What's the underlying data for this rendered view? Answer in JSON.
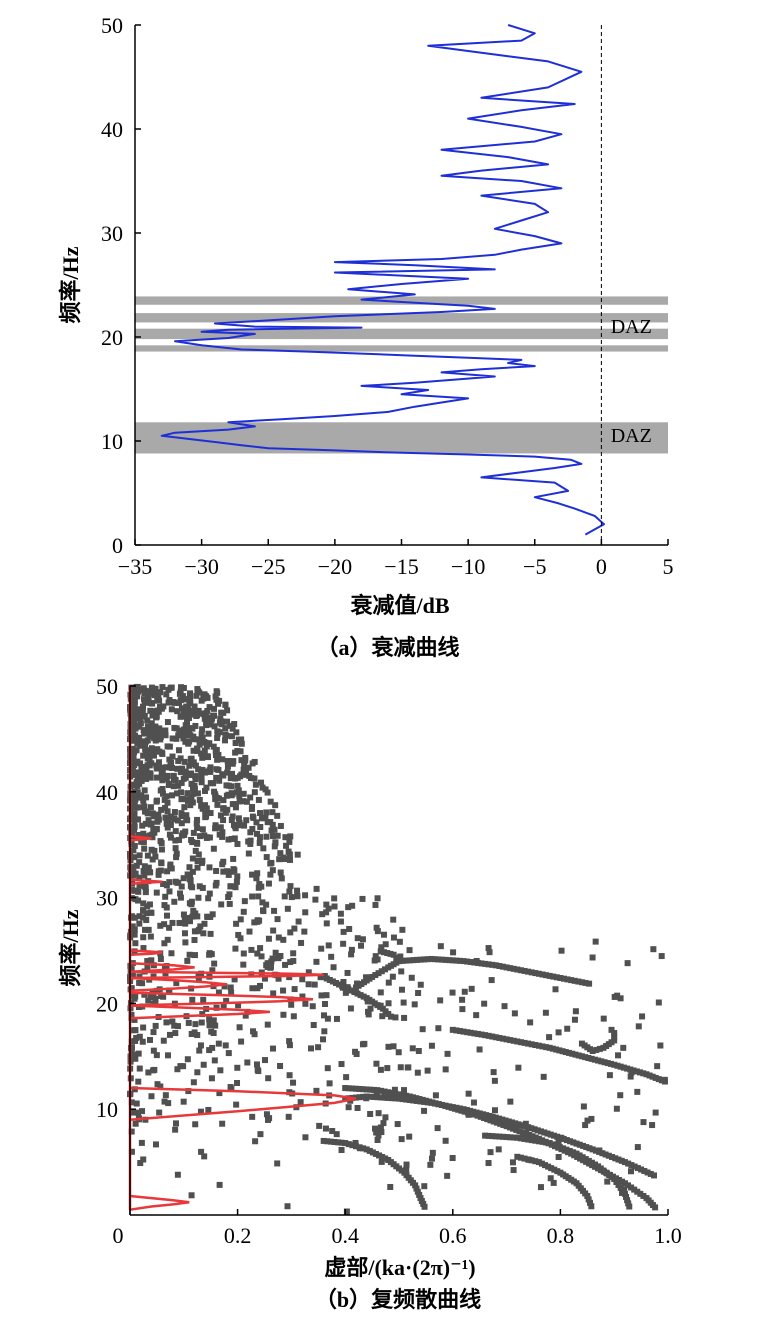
{
  "chart_data": [
    {
      "type": "line",
      "caption": "（a）衰减曲线",
      "xlabel": "衰减值/dB",
      "ylabel": "频率/Hz",
      "xlim": [
        -35,
        5
      ],
      "ylim": [
        0,
        50
      ],
      "xticks": [
        "−35",
        "−30",
        "−25",
        "−20",
        "−15",
        "−10",
        "−5",
        "0",
        "5"
      ],
      "yticks": [
        "0",
        "10",
        "20",
        "30",
        "40",
        "50"
      ],
      "line_color": "#1f2fd6",
      "band_color": "#a9a9a9",
      "reference_line_x": 0,
      "bands": [
        {
          "y0": 8.8,
          "y1": 11.8
        },
        {
          "y0": 18.6,
          "y1": 19.2
        },
        {
          "y0": 19.8,
          "y1": 20.8
        },
        {
          "y0": 21.4,
          "y1": 22.3
        },
        {
          "y0": 23.1,
          "y1": 23.9
        }
      ],
      "band_labels": [
        {
          "text": "DAZ",
          "x": 0.4,
          "y": 10.1
        },
        {
          "text": "DAZ",
          "x": 0.4,
          "y": 20.6
        }
      ],
      "series": [
        {
          "x": [
            -1.2,
            -0.5,
            0.2,
            -0.5,
            -2.0,
            -3.2,
            -5.0,
            -2.5,
            -3.5,
            -9.0,
            -6.0,
            -3.5,
            -1.5,
            -2.3,
            -5.0,
            -10.0,
            -16.0,
            -20.0,
            -25.0,
            -27.0,
            -29.0,
            -31.0,
            -33.0,
            -32.0,
            -28.0,
            -26.0,
            -28.0,
            -24.0,
            -20.0,
            -16.0,
            -14.0,
            -12.0,
            -10.0,
            -15.0,
            -13.0,
            -18.0,
            -14.0,
            -11.0,
            -8.0,
            -12.0,
            -9.0,
            -5.0,
            -7.0,
            -6.0,
            -10.0,
            -14.0,
            -18.0,
            -22.0,
            -27.0,
            -30.0,
            -32.0,
            -28.0,
            -26.0,
            -30.0,
            -28.0,
            -18.0,
            -26.0,
            -29.0,
            -25.0,
            -20.0,
            -12.0,
            -8.0,
            -10.0,
            -14.0,
            -18.0,
            -14.0,
            -19.0,
            -15.0,
            -10.0,
            -15.0,
            -20.0,
            -8.0,
            -14.0,
            -20.0,
            -12.0,
            -8.0,
            -6.0,
            -3.0,
            -5.0,
            -8.0,
            -6.0,
            -4.0,
            -5.0,
            -9.0,
            -3.0,
            -6.0,
            -12.0,
            -9.0,
            -4.0,
            -7.0,
            -12.0,
            -5.0,
            -3.0,
            -6.0,
            -10.0,
            -6.0,
            -2.0,
            -9.0,
            -4.0,
            -1.5,
            -4.0,
            -7.0,
            -13.0,
            -6.0,
            -5.0,
            -7.0
          ],
          "y": [
            1.0,
            1.5,
            2.0,
            2.8,
            3.5,
            4.0,
            4.6,
            5.2,
            6.0,
            6.5,
            7.0,
            7.4,
            7.8,
            8.2,
            8.5,
            8.7,
            8.9,
            9.1,
            9.3,
            9.6,
            9.9,
            10.2,
            10.5,
            10.8,
            11.1,
            11.4,
            11.8,
            12.1,
            12.4,
            12.8,
            13.3,
            13.7,
            14.1,
            14.5,
            14.9,
            15.3,
            15.6,
            15.9,
            16.2,
            16.6,
            16.9,
            17.2,
            17.5,
            17.8,
            18.0,
            18.2,
            18.4,
            18.6,
            18.8,
            19.2,
            19.6,
            19.9,
            20.3,
            20.5,
            20.7,
            20.9,
            21.0,
            21.3,
            21.6,
            22.0,
            22.4,
            22.7,
            23.0,
            23.3,
            23.6,
            24.1,
            24.6,
            25.1,
            25.6,
            25.9,
            26.2,
            26.5,
            26.9,
            27.2,
            27.5,
            27.9,
            28.4,
            29.0,
            29.7,
            30.4,
            31.2,
            32.0,
            32.8,
            33.6,
            34.3,
            35.0,
            35.5,
            36.0,
            36.6,
            37.3,
            38.0,
            38.8,
            39.5,
            40.2,
            41.0,
            41.8,
            42.4,
            43.0,
            44.0,
            45.5,
            46.5,
            47.0,
            48.0,
            48.5,
            49.2,
            50.0
          ]
        }
      ]
    },
    {
      "type": "scatter",
      "caption": "（b）复频散曲线",
      "xlabel": "虚部/(ka·(2π)⁻¹)",
      "ylabel": "频率/Hz",
      "xlim": [
        0,
        1.0
      ],
      "ylim": [
        0,
        50
      ],
      "xticks": [
        "0",
        "0.2",
        "0.4",
        "0.6",
        "0.8",
        "1.0"
      ],
      "yticks": [
        "10",
        "20",
        "30",
        "40",
        "50"
      ],
      "marker_color": "#505050",
      "line_color": "#e8383a",
      "red_lines": [
        {
          "x": [
            0.0,
            0.0
          ],
          "y": [
            0.5,
            50.0
          ]
        },
        {
          "x": [
            0.0,
            0.04,
            0.08,
            0.11,
            0.08,
            0.04,
            0.0
          ],
          "y": [
            0.5,
            0.8,
            1.0,
            1.2,
            1.4,
            1.6,
            1.8
          ]
        },
        {
          "x": [
            0.0,
            0.2,
            0.38,
            0.42,
            0.38,
            0.2,
            0.0
          ],
          "y": [
            9.0,
            9.8,
            10.6,
            11.0,
            11.3,
            11.7,
            12.0
          ]
        },
        {
          "x": [
            0.0,
            0.1,
            0.2,
            0.26,
            0.2,
            0.1,
            0.0
          ],
          "y": [
            18.6,
            18.8,
            19.0,
            19.2,
            19.4,
            19.6,
            19.8
          ]
        },
        {
          "x": [
            0.0,
            0.15,
            0.28,
            0.34,
            0.28,
            0.15,
            0.0
          ],
          "y": [
            19.8,
            20.0,
            20.2,
            20.4,
            20.6,
            20.8,
            21.0
          ]
        },
        {
          "x": [
            0.0,
            0.08,
            0.14,
            0.18,
            0.14,
            0.08,
            0.0
          ],
          "y": [
            21.2,
            21.4,
            21.6,
            21.8,
            22.0,
            22.2,
            22.4
          ]
        },
        {
          "x": [
            0.0,
            0.15,
            0.3,
            0.36,
            0.3,
            0.15,
            0.0
          ],
          "y": [
            22.4,
            22.5,
            22.6,
            22.7,
            22.8,
            22.9,
            23.0
          ]
        },
        {
          "x": [
            0.0,
            0.08,
            0.12,
            0.08,
            0.0
          ],
          "y": [
            23.0,
            23.2,
            23.4,
            23.6,
            23.8
          ]
        },
        {
          "x": [
            0.0,
            0.04,
            0.06,
            0.04,
            0.0
          ],
          "y": [
            24.6,
            24.7,
            24.8,
            24.9,
            25.0
          ]
        },
        {
          "x": [
            0.0,
            0.03,
            0.06,
            0.03,
            0.0
          ],
          "y": [
            31.3,
            31.4,
            31.5,
            31.6,
            31.7
          ]
        },
        {
          "x": [
            0.0,
            0.02,
            0.04,
            0.02,
            0.0
          ],
          "y": [
            35.4,
            35.5,
            35.6,
            35.7,
            35.8
          ]
        }
      ],
      "curves": [
        {
          "x": [
            0.6,
            0.66,
            0.72,
            0.78,
            0.84,
            0.9,
            0.96,
            1.0
          ],
          "y": [
            17.5,
            17.0,
            16.4,
            15.8,
            15.0,
            14.2,
            13.3,
            12.5
          ]
        },
        {
          "x": [
            0.84,
            0.86,
            0.88,
            0.9,
            0.9,
            0.89
          ],
          "y": [
            16.2,
            15.5,
            15.8,
            16.5,
            17.2,
            17.8
          ]
        },
        {
          "x": [
            0.4,
            0.44,
            0.5,
            0.56,
            0.62,
            0.68,
            0.74,
            0.8,
            0.86,
            0.92,
            0.98
          ],
          "y": [
            11.0,
            11.2,
            11.0,
            10.6,
            10.0,
            9.2,
            8.3,
            7.3,
            6.2,
            5.0,
            3.6
          ]
        },
        {
          "x": [
            0.4,
            0.46,
            0.52,
            0.58,
            0.64,
            0.7,
            0.76,
            0.82,
            0.87,
            0.92,
            0.96,
            0.98
          ],
          "y": [
            12.0,
            11.8,
            11.2,
            10.4,
            9.5,
            8.4,
            7.2,
            5.8,
            4.4,
            3.0,
            1.6,
            0.5
          ]
        },
        {
          "x": [
            0.66,
            0.72,
            0.78,
            0.83,
            0.87,
            0.9,
            0.92,
            0.93
          ],
          "y": [
            7.5,
            7.3,
            6.8,
            5.8,
            4.6,
            3.4,
            2.0,
            0.5
          ]
        },
        {
          "x": [
            0.72,
            0.76,
            0.8,
            0.83,
            0.85,
            0.86
          ],
          "y": [
            5.5,
            5.0,
            4.0,
            3.0,
            1.8,
            0.5
          ]
        },
        {
          "x": [
            0.36,
            0.4,
            0.44,
            0.48,
            0.51,
            0.53,
            0.54,
            0.55
          ],
          "y": [
            7.0,
            6.8,
            6.2,
            5.2,
            4.0,
            2.8,
            1.6,
            0.5
          ]
        },
        {
          "x": [
            0.42,
            0.45,
            0.48,
            0.5,
            0.49,
            0.46
          ],
          "y": [
            21.5,
            22.5,
            23.4,
            24.0,
            24.6,
            25.0
          ]
        },
        {
          "x": [
            0.36,
            0.4,
            0.44,
            0.47,
            0.49
          ],
          "y": [
            22.5,
            21.5,
            20.5,
            19.5,
            18.5
          ]
        },
        {
          "x": [
            0.5,
            0.56,
            0.62,
            0.68,
            0.74,
            0.8,
            0.86
          ],
          "y": [
            24.0,
            24.2,
            24.0,
            23.6,
            23.0,
            22.4,
            21.8
          ]
        }
      ]
    }
  ]
}
